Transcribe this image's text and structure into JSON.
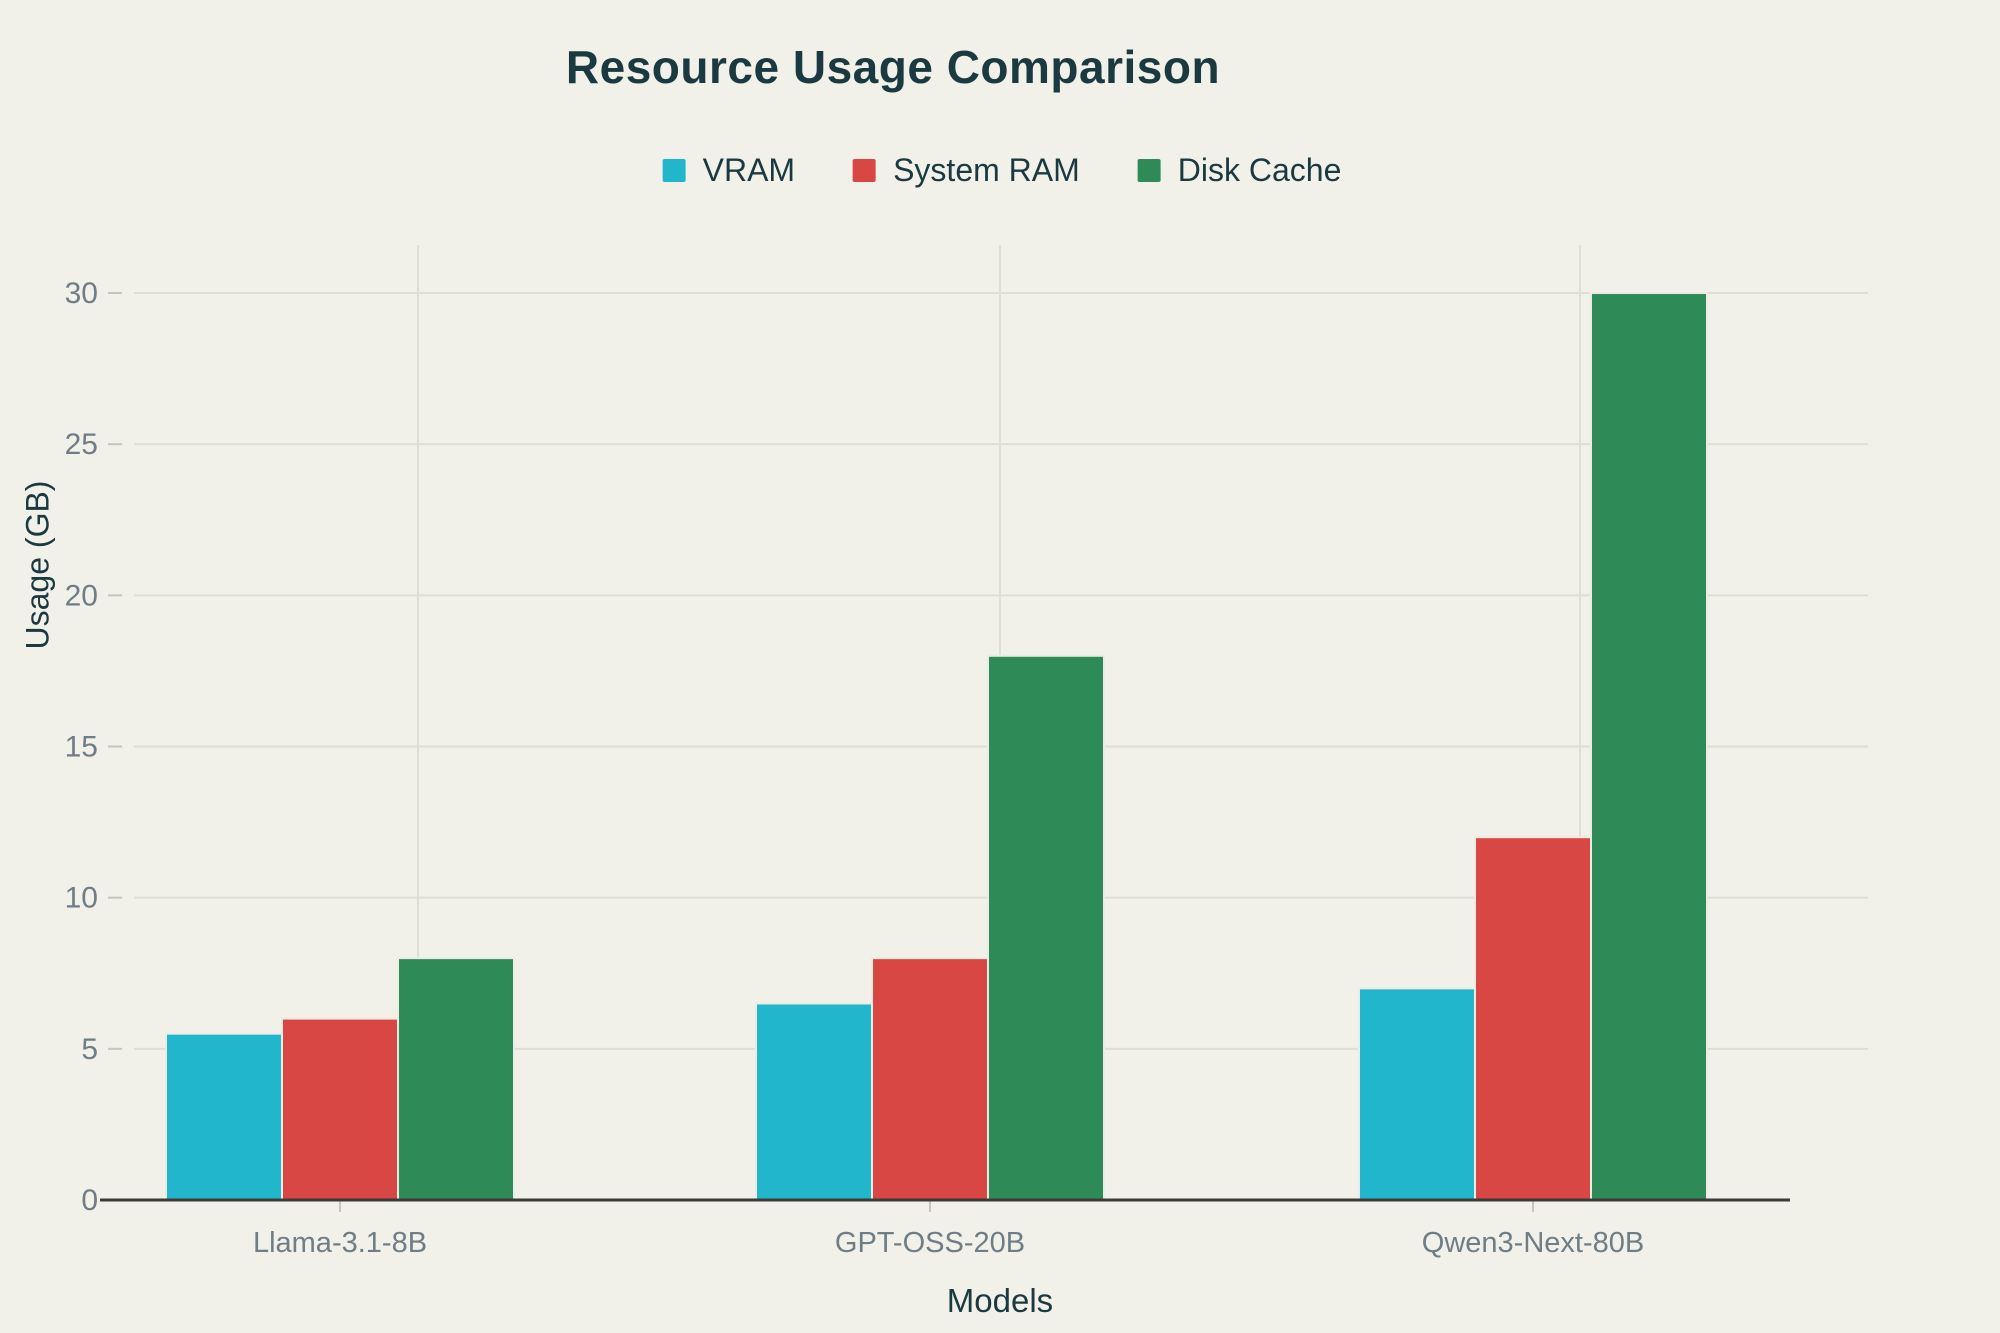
{
  "header": {
    "title": "Resource Usage Comparison"
  },
  "axes": {
    "y_title": "Usage (GB)",
    "x_title": "Models",
    "y_tick_labels": [
      "0",
      "5",
      "10",
      "15",
      "20",
      "25",
      "30"
    ]
  },
  "legend": {
    "items": [
      {
        "label": "VRAM",
        "color": "#21B6CB"
      },
      {
        "label": "System RAM",
        "color": "#D94744"
      },
      {
        "label": "Disk Cache",
        "color": "#2E8B57"
      }
    ]
  },
  "chart_data": {
    "type": "bar",
    "title": "Resource Usage Comparison",
    "categories": [
      "Llama-3.1-8B",
      "GPT-OSS-20B",
      "Qwen3-Next-80B"
    ],
    "series": [
      {
        "name": "VRAM",
        "color": "#21B6CB",
        "values": [
          5.5,
          6.5,
          7
        ]
      },
      {
        "name": "System RAM",
        "color": "#D94744",
        "values": [
          6,
          8,
          12
        ]
      },
      {
        "name": "Disk Cache",
        "color": "#2E8B57",
        "values": [
          8,
          18,
          30
        ]
      }
    ],
    "xlabel": "Models",
    "ylabel": "Usage (GB)",
    "ylim": [
      0,
      30
    ],
    "yticks": [
      0,
      5,
      10,
      15,
      20,
      25,
      30
    ],
    "grid": true,
    "legend_position": "top"
  },
  "style": {
    "background": "#F1F0E9",
    "title_color": "#1B3940",
    "tick_label_color": "#6E7D86",
    "gridline_color": "#DFDED4",
    "axis_line_color": "#3C3B39",
    "tick_mark_color": "#C6C5BC",
    "bar_border_color": "#EDECE4"
  }
}
